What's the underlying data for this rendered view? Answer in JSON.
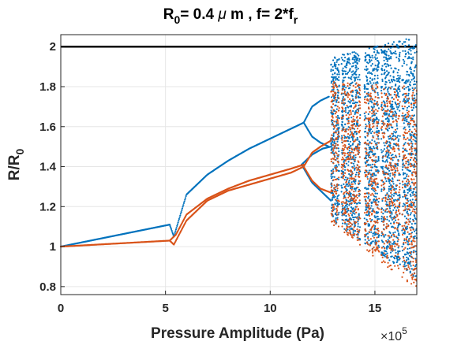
{
  "chart_data": {
    "type": "scatter",
    "title": {
      "main": "R",
      "sub0": "0",
      "rest": "= 0.4 ",
      "mu": "μ",
      "rest2": " m , f= 2*f",
      "subr": "r"
    },
    "xlabel": "Pressure Amplitude (Pa)",
    "ylabel": {
      "main": "R/R",
      "sub": "0"
    },
    "x_exponent": {
      "base": "×10",
      "power": "5"
    },
    "xlim": [
      0,
      17
    ],
    "ylim": [
      0.76,
      2.06
    ],
    "x_ticks": [
      0,
      5,
      10,
      15
    ],
    "y_ticks": [
      0.8,
      1,
      1.2,
      1.4,
      1.6,
      1.8,
      2
    ],
    "x_tick_labels": [
      "0",
      "5",
      "10",
      "15"
    ],
    "y_tick_labels": [
      "0.8",
      "1",
      "1.2",
      "1.4",
      "1.6",
      "1.8",
      "2"
    ],
    "grid": true,
    "reference_line": {
      "y": 2,
      "color": "#000000"
    },
    "series": [
      {
        "color": "#0072BD",
        "branches": [
          {
            "x": [
              0,
              5.2
            ],
            "y": [
              1.0,
              1.11
            ]
          },
          {
            "x": [
              5.2,
              5.4,
              6,
              7,
              8,
              9,
              10,
              11,
              11.6
            ],
            "y": [
              1.11,
              1.05,
              1.26,
              1.36,
              1.43,
              1.49,
              1.54,
              1.59,
              1.62
            ]
          },
          {
            "x": [
              11.6,
              12.0,
              12.4,
              12.8
            ],
            "y": [
              1.62,
              1.7,
              1.73,
              1.75
            ]
          },
          {
            "x": [
              11.6,
              12.0,
              12.4,
              12.8
            ],
            "y": [
              1.62,
              1.55,
              1.52,
              1.5
            ]
          },
          {
            "x": [
              11.5,
              12.0,
              12.5,
              12.9
            ],
            "y": [
              1.41,
              1.46,
              1.49,
              1.5
            ]
          },
          {
            "x": [
              11.5,
              12.0,
              12.5,
              12.9
            ],
            "y": [
              1.41,
              1.32,
              1.27,
              1.23
            ]
          }
        ]
      },
      {
        "color": "#D95319",
        "branches": [
          {
            "x": [
              0,
              5.2
            ],
            "y": [
              1.0,
              1.03
            ]
          },
          {
            "x": [
              5.2,
              5.4,
              6,
              7,
              8,
              9,
              10,
              11,
              11.6
            ],
            "y": [
              1.03,
              1.01,
              1.13,
              1.23,
              1.28,
              1.31,
              1.34,
              1.37,
              1.4
            ]
          },
          {
            "x": [
              5.2,
              5.5,
              6,
              7,
              8,
              9,
              10,
              11,
              11.6
            ],
            "y": [
              1.03,
              1.06,
              1.16,
              1.24,
              1.29,
              1.33,
              1.36,
              1.39,
              1.41
            ]
          },
          {
            "x": [
              11.6,
              12.0,
              12.4,
              12.9
            ],
            "y": [
              1.4,
              1.47,
              1.5,
              1.53
            ]
          },
          {
            "x": [
              11.6,
              12.0,
              12.4,
              12.9
            ],
            "y": [
              1.4,
              1.33,
              1.29,
              1.27
            ]
          }
        ]
      }
    ],
    "chaotic_region": {
      "x_start": 12.9,
      "x_end": 17,
      "windows": [
        [
          13.3,
          13.4
        ],
        [
          14.3,
          14.5
        ],
        [
          15.2,
          15.3
        ],
        [
          16.2,
          16.3
        ]
      ],
      "blue": {
        "y_min": 0.84,
        "y_max": 2.05
      },
      "orange": {
        "y_min": 0.78,
        "y_max": 1.8
      }
    }
  }
}
